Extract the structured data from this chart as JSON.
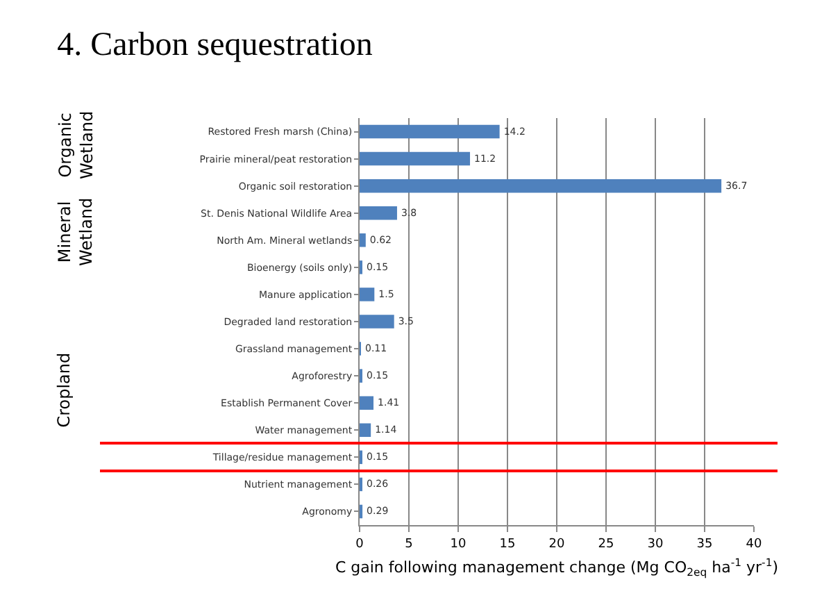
{
  "chart_data": {
    "type": "bar",
    "orientation": "horizontal",
    "title": "4. Carbon sequestration",
    "xlabel": "C gain following management change (Mg CO$_{2eq}$ ha$^{-1}$ yr$^{-1}$)",
    "categories": [
      "Restored Fresh marsh (China)",
      "Prairie mineral/peat restoration",
      "Organic soil restoration",
      "St. Denis National Wildlife Area",
      "North Am. Mineral wetlands",
      "Bioenergy (soils only)",
      "Manure application",
      "Degraded land restoration",
      "Grassland management",
      "Agroforestry",
      "Establish Permanent Cover",
      "Water management",
      "Tillage/residue management",
      "Nutrient management",
      "Agronomy"
    ],
    "values": [
      14.2,
      11.2,
      36.7,
      3.8,
      0.62,
      0.15,
      1.5,
      3.5,
      0.11,
      0.15,
      1.41,
      1.14,
      0.15,
      0.26,
      0.29
    ],
    "value_labels": [
      "14.2",
      "11.2",
      "36.7",
      "3.8",
      "0.62",
      "0.15",
      "1.5",
      "3.5",
      "0.11",
      "0.15",
      "1.41",
      "1.14",
      "0.15",
      "0.26",
      "0.29"
    ],
    "color": "#4f81bd",
    "xlim": [
      0,
      40
    ],
    "xticks": [
      0,
      5,
      10,
      15,
      20,
      25,
      30,
      35,
      40
    ],
    "grid": "x",
    "annotations": [
      "Organic\nWetland",
      "Mineral\nWetland",
      "Cropland"
    ]
  }
}
